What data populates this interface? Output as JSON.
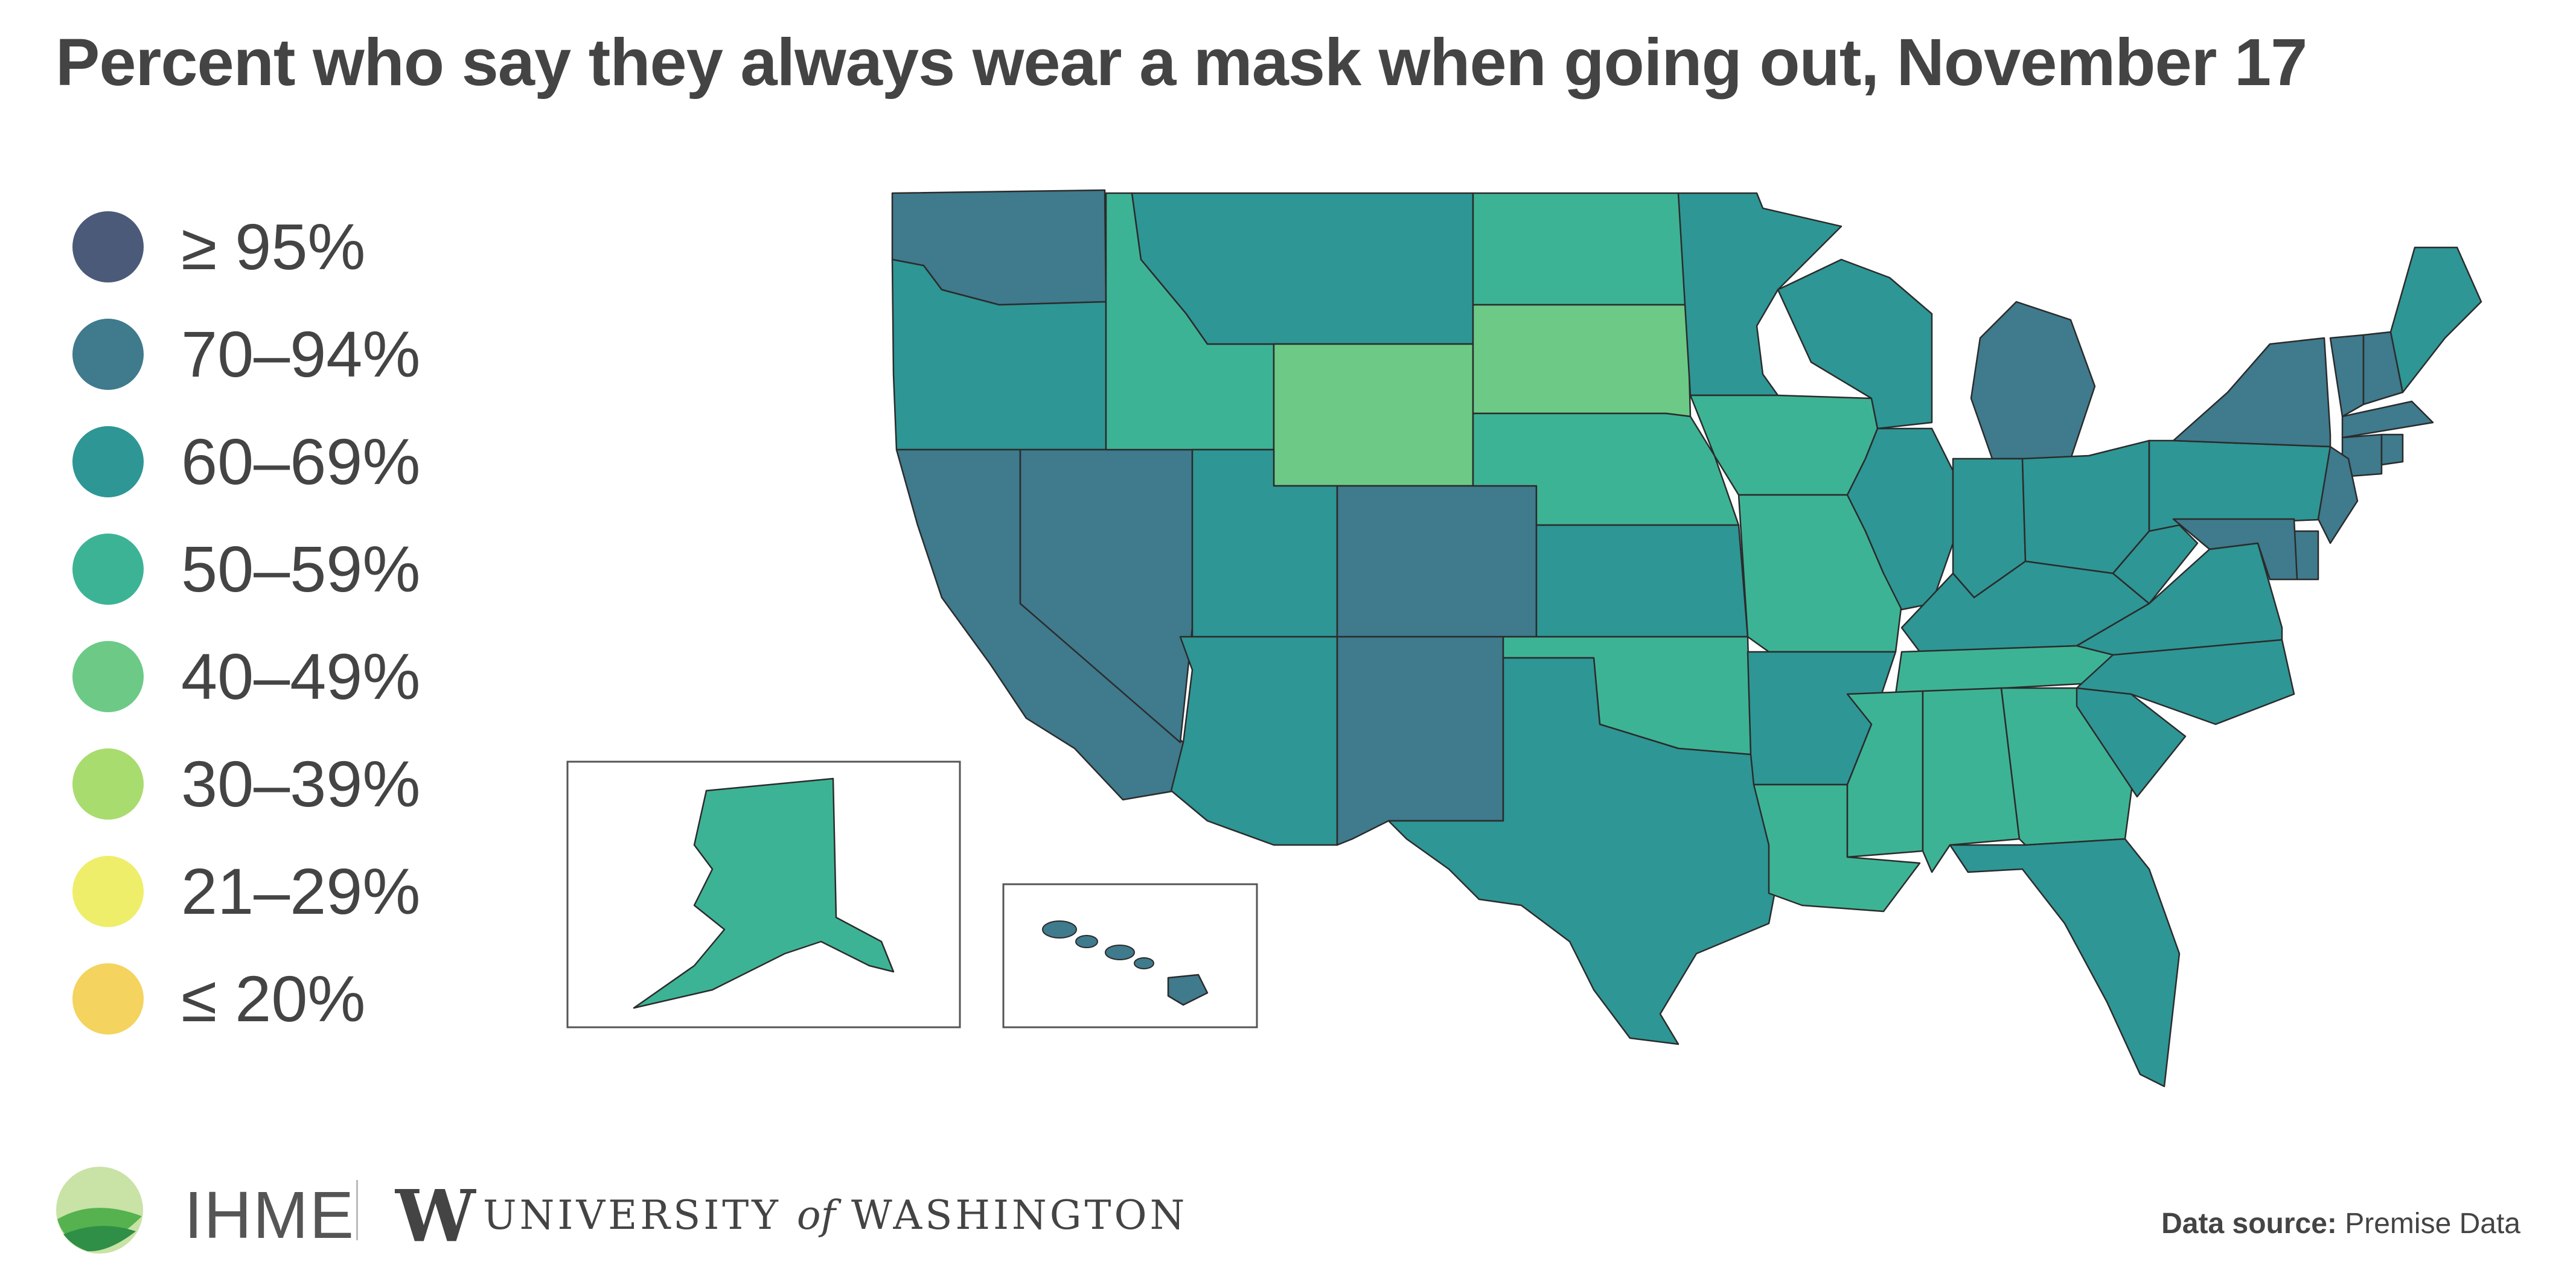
{
  "title": "Percent who say they always wear a mask when going out, November 17",
  "legend": [
    {
      "label": "≥ 95%",
      "color": "#4b5a78"
    },
    {
      "label": "70–94%",
      "color": "#3f7a8d"
    },
    {
      "label": "60–69%",
      "color": "#2e9695"
    },
    {
      "label": "50–59%",
      "color": "#3db395"
    },
    {
      "label": "40–49%",
      "color": "#6cca86"
    },
    {
      "label": "30–39%",
      "color": "#a9dc6e"
    },
    {
      "label": "21–29%",
      "color": "#eeee6a"
    },
    {
      "label": "≤ 20%",
      "color": "#f4d35e"
    }
  ],
  "footer": {
    "ihme": "IHME",
    "uw_mark": "W",
    "uw_university": "UNIVERSITY",
    "uw_of": "of",
    "uw_washington": "WASHINGTON",
    "source_label": "Data source:",
    "source_value": "Premise Data"
  },
  "map_data": {
    "states": [
      {
        "code": "WA",
        "bin": "70–94%"
      },
      {
        "code": "OR",
        "bin": "60–69%"
      },
      {
        "code": "CA",
        "bin": "70–94%"
      },
      {
        "code": "NV",
        "bin": "70–94%"
      },
      {
        "code": "ID",
        "bin": "50–59%"
      },
      {
        "code": "MT",
        "bin": "60–69%"
      },
      {
        "code": "WY",
        "bin": "40–49%"
      },
      {
        "code": "UT",
        "bin": "60–69%"
      },
      {
        "code": "AZ",
        "bin": "60–69%"
      },
      {
        "code": "CO",
        "bin": "70–94%"
      },
      {
        "code": "NM",
        "bin": "70–94%"
      },
      {
        "code": "ND",
        "bin": "50–59%"
      },
      {
        "code": "SD",
        "bin": "40–49%"
      },
      {
        "code": "NE",
        "bin": "50–59%"
      },
      {
        "code": "KS",
        "bin": "60–69%"
      },
      {
        "code": "OK",
        "bin": "50–59%"
      },
      {
        "code": "TX",
        "bin": "60–69%"
      },
      {
        "code": "MN",
        "bin": "60–69%"
      },
      {
        "code": "IA",
        "bin": "50–59%"
      },
      {
        "code": "MO",
        "bin": "50–59%"
      },
      {
        "code": "AR",
        "bin": "60–69%"
      },
      {
        "code": "LA",
        "bin": "50–59%"
      },
      {
        "code": "WI",
        "bin": "60–69%"
      },
      {
        "code": "IL",
        "bin": "60–69%"
      },
      {
        "code": "MI",
        "bin": "70–94%"
      },
      {
        "code": "IN",
        "bin": "60–69%"
      },
      {
        "code": "OH",
        "bin": "60–69%"
      },
      {
        "code": "KY",
        "bin": "60–69%"
      },
      {
        "code": "TN",
        "bin": "50–59%"
      },
      {
        "code": "MS",
        "bin": "50–59%"
      },
      {
        "code": "AL",
        "bin": "50–59%"
      },
      {
        "code": "GA",
        "bin": "50–59%"
      },
      {
        "code": "FL",
        "bin": "60–69%"
      },
      {
        "code": "SC",
        "bin": "60–69%"
      },
      {
        "code": "NC",
        "bin": "60–69%"
      },
      {
        "code": "VA",
        "bin": "60–69%"
      },
      {
        "code": "WV",
        "bin": "60–69%"
      },
      {
        "code": "PA",
        "bin": "60–69%"
      },
      {
        "code": "NY",
        "bin": "70–94%"
      },
      {
        "code": "VT",
        "bin": "70–94%"
      },
      {
        "code": "NH",
        "bin": "70–94%"
      },
      {
        "code": "ME",
        "bin": "60–69%"
      },
      {
        "code": "MA",
        "bin": "70–94%"
      },
      {
        "code": "CT",
        "bin": "70–94%"
      },
      {
        "code": "RI",
        "bin": "70–94%"
      },
      {
        "code": "NJ",
        "bin": "70–94%"
      },
      {
        "code": "DE",
        "bin": "70–94%"
      },
      {
        "code": "MD",
        "bin": "70–94%"
      },
      {
        "code": "AK",
        "bin": "50–59%"
      },
      {
        "code": "HI",
        "bin": "70–94%"
      }
    ]
  }
}
